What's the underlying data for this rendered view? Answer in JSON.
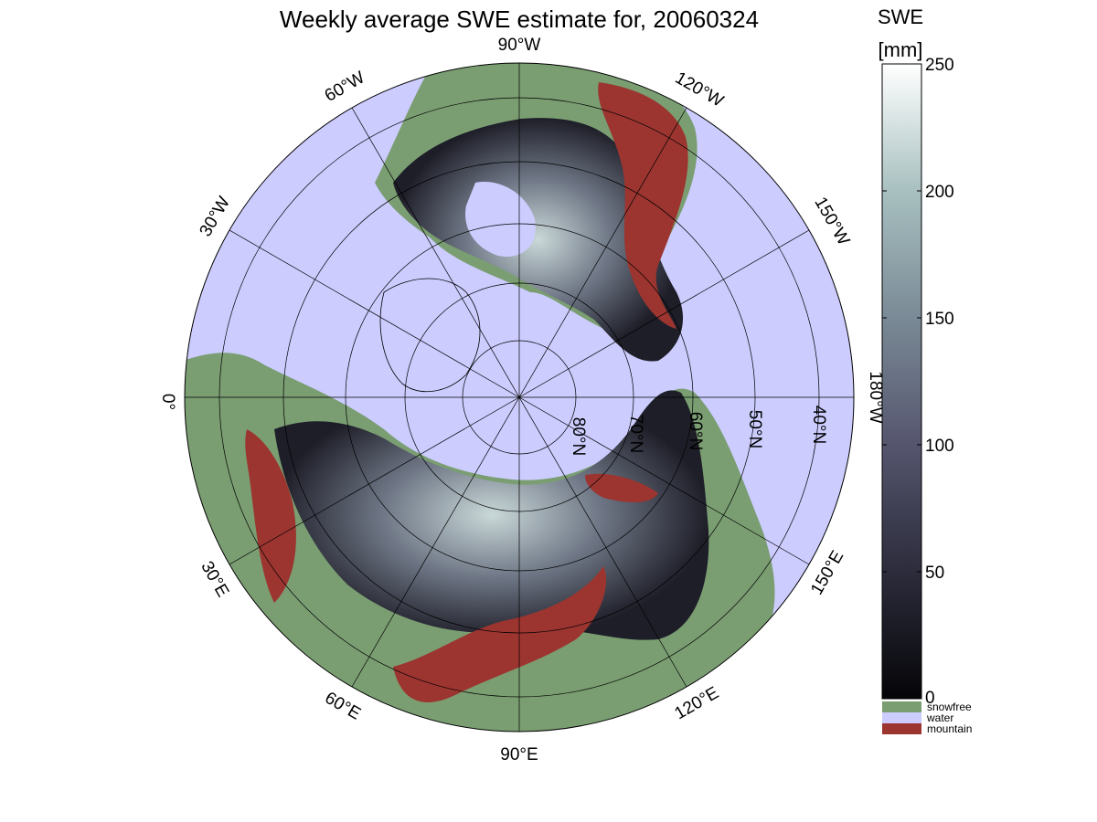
{
  "title": "Weekly average SWE estimate for, 20060324",
  "colorbar": {
    "label_line1": "SWE",
    "label_line2": "[mm]",
    "ticks": [
      "0",
      "50",
      "100",
      "150",
      "200",
      "250"
    ],
    "range": [
      0,
      250
    ],
    "categories": [
      {
        "label": "snowfree",
        "color": "#7a9e72"
      },
      {
        "label": "water",
        "color": "#ccccff"
      },
      {
        "label": "mountain",
        "color": "#9c3530"
      }
    ],
    "gradient_colors": [
      "#050508",
      "#2c2c3c",
      "#55556e",
      "#7a8a96",
      "#a8c0c0",
      "#ffffff"
    ]
  },
  "map": {
    "projection": "polar stereographic, north pole",
    "longitude_labels": [
      "90°W",
      "120°W",
      "150°W",
      "180°W",
      "150°E",
      "120°E",
      "90°E",
      "60°E",
      "30°E",
      "0°",
      "30°W",
      "60°W"
    ],
    "latitude_labels": [
      "80°N",
      "70°N",
      "60°N",
      "50°N",
      "40°N"
    ],
    "colors": {
      "water": "#ccccff",
      "snowfree": "#7a9e72",
      "mountain": "#9c3530"
    }
  }
}
